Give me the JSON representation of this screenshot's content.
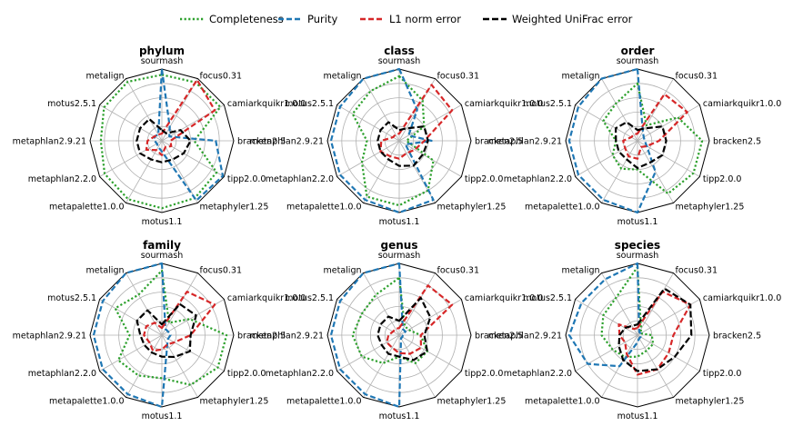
{
  "colors": {
    "Completeness": "#2ca02c",
    "Purity": "#1f77b4",
    "L1 norm error": "#d62728",
    "Weighted UniFrac error": "#000000",
    "grid": "#b0b0b0"
  },
  "legend": {
    "placement": "top-center",
    "items": [
      {
        "name": "Completeness",
        "style": "dotted"
      },
      {
        "name": "Purity",
        "style": "dashed"
      },
      {
        "name": "L1 norm error",
        "style": "dashed"
      },
      {
        "name": "Weighted UniFrac error",
        "style": "dashed"
      }
    ]
  },
  "chart_data": [
    {
      "type": "radar",
      "title": "phylum",
      "rlim": [
        0,
        1
      ],
      "grid": true,
      "axes": [
        "sourmash",
        "focus0.31",
        "camiarkquikr1.0.0",
        "bracken2.5",
        "tipp2.0.0",
        "metaphyler1.25",
        "motus1.1",
        "metapalette1.0.0",
        "metaphlan2.2.0",
        "metaphlan2.9.21",
        "motus2.5.1",
        "metalign"
      ],
      "series": [
        {
          "name": "Completeness",
          "values": [
            0.92,
            0.94,
            0.94,
            0.45,
            0.88,
            0.92,
            0.94,
            0.94,
            0.92,
            0.85,
            0.93,
            0.95
          ]
        },
        {
          "name": "Purity",
          "values": [
            1.0,
            0.22,
            0.12,
            0.75,
            0.98,
            0.96,
            0.15,
            0.1,
            0.08,
            0.1,
            0.12,
            0.1
          ]
        },
        {
          "name": "L1 norm error",
          "values": [
            0.1,
            0.98,
            0.85,
            0.12,
            0.15,
            0.1,
            0.2,
            0.15,
            0.25,
            0.2,
            0.12,
            0.1
          ]
        },
        {
          "name": "Weighted UniFrac error",
          "values": [
            0.15,
            0.12,
            0.3,
            0.4,
            0.35,
            0.3,
            0.3,
            0.3,
            0.35,
            0.35,
            0.35,
            0.35
          ]
        }
      ]
    },
    {
      "type": "radar",
      "title": "class",
      "rlim": [
        0,
        1
      ],
      "grid": true,
      "axes": [
        "sourmash",
        "focus0.31",
        "camiarkquikr1.0.0",
        "bracken2.5",
        "tipp2.0.0",
        "metaphyler1.25",
        "motus1.1",
        "metapalette1.0.0",
        "metaphlan2.2.0",
        "metaphlan2.9.21",
        "motus2.5.1",
        "metalign"
      ],
      "series": [
        {
          "name": "Completeness",
          "values": [
            0.9,
            0.65,
            0.4,
            0.1,
            0.55,
            0.8,
            0.9,
            0.9,
            0.6,
            0.45,
            0.75,
            0.8
          ]
        },
        {
          "name": "Purity",
          "values": [
            1.0,
            0.5,
            0.15,
            0.45,
            0.1,
            0.95,
            1.0,
            0.95,
            0.95,
            0.95,
            0.95,
            1.0
          ]
        },
        {
          "name": "L1 norm error",
          "values": [
            0.1,
            0.9,
            0.85,
            0.35,
            0.25,
            0.2,
            0.25,
            0.25,
            0.3,
            0.25,
            0.1,
            0.1
          ]
        },
        {
          "name": "Weighted UniFrac error",
          "values": [
            0.15,
            0.2,
            0.4,
            0.4,
            0.38,
            0.4,
            0.35,
            0.3,
            0.3,
            0.3,
            0.3,
            0.3
          ]
        }
      ]
    },
    {
      "type": "radar",
      "title": "order",
      "rlim": [
        0,
        1
      ],
      "grid": true,
      "axes": [
        "sourmash",
        "focus0.31",
        "camiarkquikr1.0.0",
        "bracken2.5",
        "tipp2.0.0",
        "metaphyler1.25",
        "motus1.1",
        "metapalette1.0.0",
        "metaphlan2.2.0",
        "metaphlan2.9.21",
        "motus2.5.1",
        "metalign"
      ],
      "series": [
        {
          "name": "Completeness",
          "values": [
            0.8,
            0.25,
            0.65,
            0.9,
            0.9,
            0.85,
            0.4,
            0.45,
            0.4,
            0.3,
            0.55,
            0.6
          ]
        },
        {
          "name": "Purity",
          "values": [
            1.0,
            0.15,
            0.1,
            0.1,
            0.15,
            0.5,
            1.0,
            0.95,
            0.95,
            0.95,
            0.95,
            1.0
          ]
        },
        {
          "name": "L1 norm error",
          "values": [
            0.1,
            0.75,
            0.8,
            0.3,
            0.15,
            0.1,
            0.25,
            0.25,
            0.2,
            0.2,
            0.1,
            0.1
          ]
        },
        {
          "name": "Weighted UniFrac error",
          "values": [
            0.15,
            0.2,
            0.4,
            0.4,
            0.4,
            0.35,
            0.38,
            0.3,
            0.3,
            0.3,
            0.35,
            0.3
          ]
        }
      ]
    },
    {
      "type": "radar",
      "title": "family",
      "rlim": [
        0,
        1
      ],
      "grid": true,
      "axes": [
        "sourmash",
        "focus0.31",
        "camiarkquikr1.0.0",
        "bracken2.5",
        "tipp2.0.0",
        "metaphyler1.25",
        "motus1.1",
        "metapalette1.0.0",
        "metaphlan2.2.0",
        "metaphlan2.9.21",
        "motus2.5.1",
        "metalign"
      ],
      "series": [
        {
          "name": "Completeness",
          "values": [
            0.9,
            0.2,
            0.45,
            0.9,
            0.9,
            0.8,
            0.6,
            0.65,
            0.7,
            0.45,
            0.75,
            0.65
          ]
        },
        {
          "name": "Purity",
          "values": [
            1.0,
            0.1,
            0.1,
            0.12,
            0.1,
            0.15,
            1.0,
            0.95,
            0.95,
            0.95,
            0.95,
            1.0
          ]
        },
        {
          "name": "L1 norm error",
          "values": [
            0.1,
            0.7,
            0.85,
            0.4,
            0.2,
            0.15,
            0.2,
            0.25,
            0.2,
            0.25,
            0.25,
            0.2
          ]
        },
        {
          "name": "Weighted UniFrac error",
          "values": [
            0.15,
            0.5,
            0.55,
            0.4,
            0.45,
            0.35,
            0.3,
            0.28,
            0.28,
            0.3,
            0.4,
            0.4
          ]
        }
      ]
    },
    {
      "type": "radar",
      "title": "genus",
      "rlim": [
        0,
        1
      ],
      "grid": true,
      "axes": [
        "sourmash",
        "focus0.31",
        "camiarkquikr1.0.0",
        "bracken2.5",
        "tipp2.0.0",
        "metaphyler1.25",
        "motus1.1",
        "metapalette1.0.0",
        "metaphlan2.2.0",
        "metaphlan2.9.21",
        "motus2.5.1",
        "metalign"
      ],
      "series": [
        {
          "name": "Completeness",
          "values": [
            0.8,
            0.15,
            0.15,
            0.3,
            0.45,
            0.45,
            0.3,
            0.45,
            0.6,
            0.65,
            0.6,
            0.65
          ]
        },
        {
          "name": "Purity",
          "values": [
            1.0,
            0.1,
            0.1,
            0.05,
            0.05,
            0.05,
            1.0,
            0.95,
            0.95,
            0.95,
            0.95,
            1.0
          ]
        },
        {
          "name": "L1 norm error",
          "values": [
            0.1,
            0.8,
            0.85,
            0.3,
            0.35,
            0.3,
            0.25,
            0.2,
            0.2,
            0.15,
            0.1,
            0.1
          ]
        },
        {
          "name": "Weighted UniFrac error",
          "values": [
            0.2,
            0.6,
            0.5,
            0.35,
            0.45,
            0.4,
            0.3,
            0.3,
            0.28,
            0.3,
            0.3,
            0.3
          ]
        }
      ]
    },
    {
      "type": "radar",
      "title": "species",
      "rlim": [
        0,
        1
      ],
      "grid": true,
      "axes": [
        "sourmash",
        "focus0.31",
        "camiarkquikr1.0.0",
        "bracken2.5",
        "tipp2.0.0",
        "metaphyler1.25",
        "motus1.1",
        "metapalette1.0.0",
        "metaphlan2.2.0",
        "metaphlan2.9.21",
        "motus2.5.1",
        "metalign"
      ],
      "series": [
        {
          "name": "Completeness",
          "values": [
            0.95,
            0.1,
            0.05,
            0.2,
            0.25,
            0.25,
            0.3,
            0.35,
            0.4,
            0.5,
            0.55,
            0.6
          ]
        },
        {
          "name": "Purity",
          "values": [
            1.0,
            0.05,
            0.05,
            0.05,
            0.05,
            0.05,
            0.1,
            0.5,
            0.8,
            0.95,
            0.9,
            0.9
          ]
        },
        {
          "name": "L1 norm error",
          "values": [
            0.1,
            0.7,
            0.85,
            0.5,
            0.5,
            0.55,
            0.55,
            0.3,
            0.2,
            0.25,
            0.3,
            0.1
          ]
        },
        {
          "name": "Weighted UniFrac error",
          "values": [
            0.15,
            0.75,
            0.85,
            0.75,
            0.6,
            0.55,
            0.5,
            0.4,
            0.3,
            0.25,
            0.2,
            0.15
          ]
        }
      ]
    }
  ]
}
